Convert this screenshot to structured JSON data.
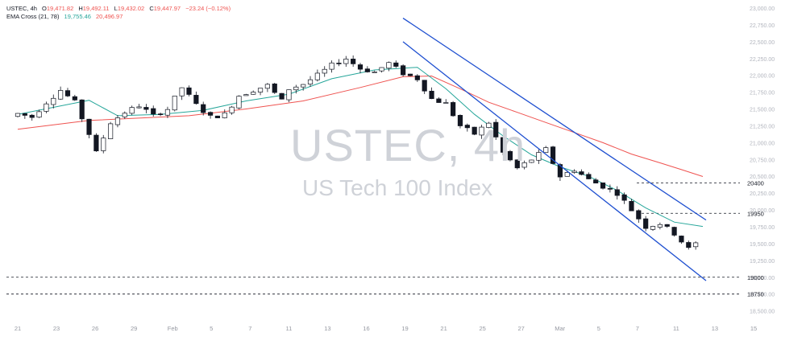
{
  "header": {
    "symbol": "USTEC, 4h",
    "o_label": "O",
    "o": "19,471.82",
    "h_label": "H",
    "h": "19,492.11",
    "l_label": "L",
    "l": "19,432.02",
    "c_label": "C",
    "c": "19,447.97",
    "change": "−23.24 (−0.12%)",
    "ema_label": "EMA Cross (21, 78)",
    "ema_fast": "19,755.46",
    "ema_slow": "20,496.97"
  },
  "watermark": {
    "title": "USTEC, 4h",
    "subtitle": "US Tech 100 Index"
  },
  "colors": {
    "ema_fast": "#26a69a",
    "ema_slow": "#ef5350",
    "channel": "#1e4fd0",
    "candle_up": "#ffffff",
    "candle_down": "#131722"
  },
  "chart_data": {
    "type": "candlestick",
    "ylim": [
      18400,
      23000
    ],
    "y_ticks": [
      18500,
      18750,
      19000,
      19250,
      19500,
      19750,
      20000,
      20250,
      20500,
      20750,
      21000,
      21250,
      21500,
      21750,
      22000,
      22250,
      22500,
      22750,
      23000
    ],
    "y_tick_labels": [
      "18,500.00",
      "18,750.00",
      "19,000.00",
      "19,250.00",
      "19,500.00",
      "19,750.00",
      "20,000.00",
      "20,250.00",
      "20,500.00",
      "20,750.00",
      "21,000.00",
      "21,250.00",
      "21,500.00",
      "21,750.00",
      "22,000.00",
      "22,250.00",
      "22,500.00",
      "22,750.00",
      "23,000.00"
    ],
    "x_ticks": [
      "21",
      "23",
      "26",
      "29",
      "Feb",
      "5",
      "7",
      "11",
      "13",
      "16",
      "19",
      "21",
      "25",
      "27",
      "Mar",
      "5",
      "7",
      "11",
      "13",
      "15"
    ],
    "levels": [
      {
        "label": "20400",
        "value": 20400
      },
      {
        "label": "19950",
        "value": 19950
      },
      {
        "label": "19000",
        "value": 19000
      },
      {
        "label": "18750",
        "value": 18750
      }
    ],
    "channel_upper": [
      [
        19,
        22850
      ],
      [
        69,
        19850
      ]
    ],
    "channel_lower": [
      [
        19,
        22500
      ],
      [
        69,
        18950
      ]
    ],
    "close_path": [
      [
        0,
        21430
      ],
      [
        2,
        21380
      ],
      [
        4,
        21600
      ],
      [
        6,
        21780
      ],
      [
        8,
        21600
      ],
      [
        10,
        21130
      ],
      [
        11,
        20850
      ],
      [
        13,
        21300
      ],
      [
        15,
        21450
      ],
      [
        17,
        21550
      ],
      [
        19,
        21400
      ],
      [
        21,
        21500
      ],
      [
        23,
        21820
      ],
      [
        25,
        21560
      ],
      [
        27,
        21380
      ],
      [
        29,
        21420
      ],
      [
        31,
        21700
      ],
      [
        33,
        21780
      ],
      [
        35,
        21850
      ],
      [
        37,
        21620
      ],
      [
        38,
        21800
      ],
      [
        40,
        21870
      ],
      [
        42,
        22000
      ],
      [
        44,
        22150
      ],
      [
        46,
        22250
      ],
      [
        48,
        22100
      ],
      [
        50,
        22050
      ],
      [
        52,
        22180
      ],
      [
        54,
        22030
      ],
      [
        56,
        21950
      ],
      [
        58,
        21650
      ],
      [
        60,
        21580
      ],
      [
        62,
        21250
      ],
      [
        64,
        21130
      ],
      [
        66,
        21300
      ],
      [
        68,
        20850
      ],
      [
        70,
        20620
      ],
      [
        72,
        20750
      ],
      [
        74,
        20900
      ],
      [
        76,
        20500
      ],
      [
        78,
        20600
      ],
      [
        80,
        20450
      ],
      [
        82,
        20350
      ],
      [
        84,
        20250
      ],
      [
        86,
        20000
      ],
      [
        88,
        19750
      ],
      [
        90,
        19800
      ],
      [
        92,
        19650
      ],
      [
        94,
        19420
      ],
      [
        95,
        19500
      ]
    ],
    "n_bars": 96,
    "ema_fast_points": [
      [
        0,
        21420
      ],
      [
        10,
        21630
      ],
      [
        14,
        21400
      ],
      [
        20,
        21420
      ],
      [
        26,
        21480
      ],
      [
        32,
        21620
      ],
      [
        38,
        21720
      ],
      [
        44,
        21950
      ],
      [
        50,
        22080
      ],
      [
        56,
        22120
      ],
      [
        60,
        21800
      ],
      [
        64,
        21420
      ],
      [
        68,
        21100
      ],
      [
        72,
        20820
      ],
      [
        76,
        20640
      ],
      [
        80,
        20500
      ],
      [
        84,
        20290
      ],
      [
        88,
        20030
      ],
      [
        92,
        19820
      ],
      [
        96,
        19755
      ]
    ],
    "ema_slow_points": [
      [
        0,
        21200
      ],
      [
        10,
        21330
      ],
      [
        16,
        21360
      ],
      [
        24,
        21400
      ],
      [
        32,
        21500
      ],
      [
        40,
        21620
      ],
      [
        48,
        21820
      ],
      [
        54,
        21980
      ],
      [
        58,
        21990
      ],
      [
        62,
        21800
      ],
      [
        66,
        21600
      ],
      [
        70,
        21450
      ],
      [
        74,
        21300
      ],
      [
        78,
        21150
      ],
      [
        82,
        21000
      ],
      [
        86,
        20830
      ],
      [
        90,
        20700
      ],
      [
        93,
        20600
      ],
      [
        96,
        20497
      ]
    ]
  }
}
